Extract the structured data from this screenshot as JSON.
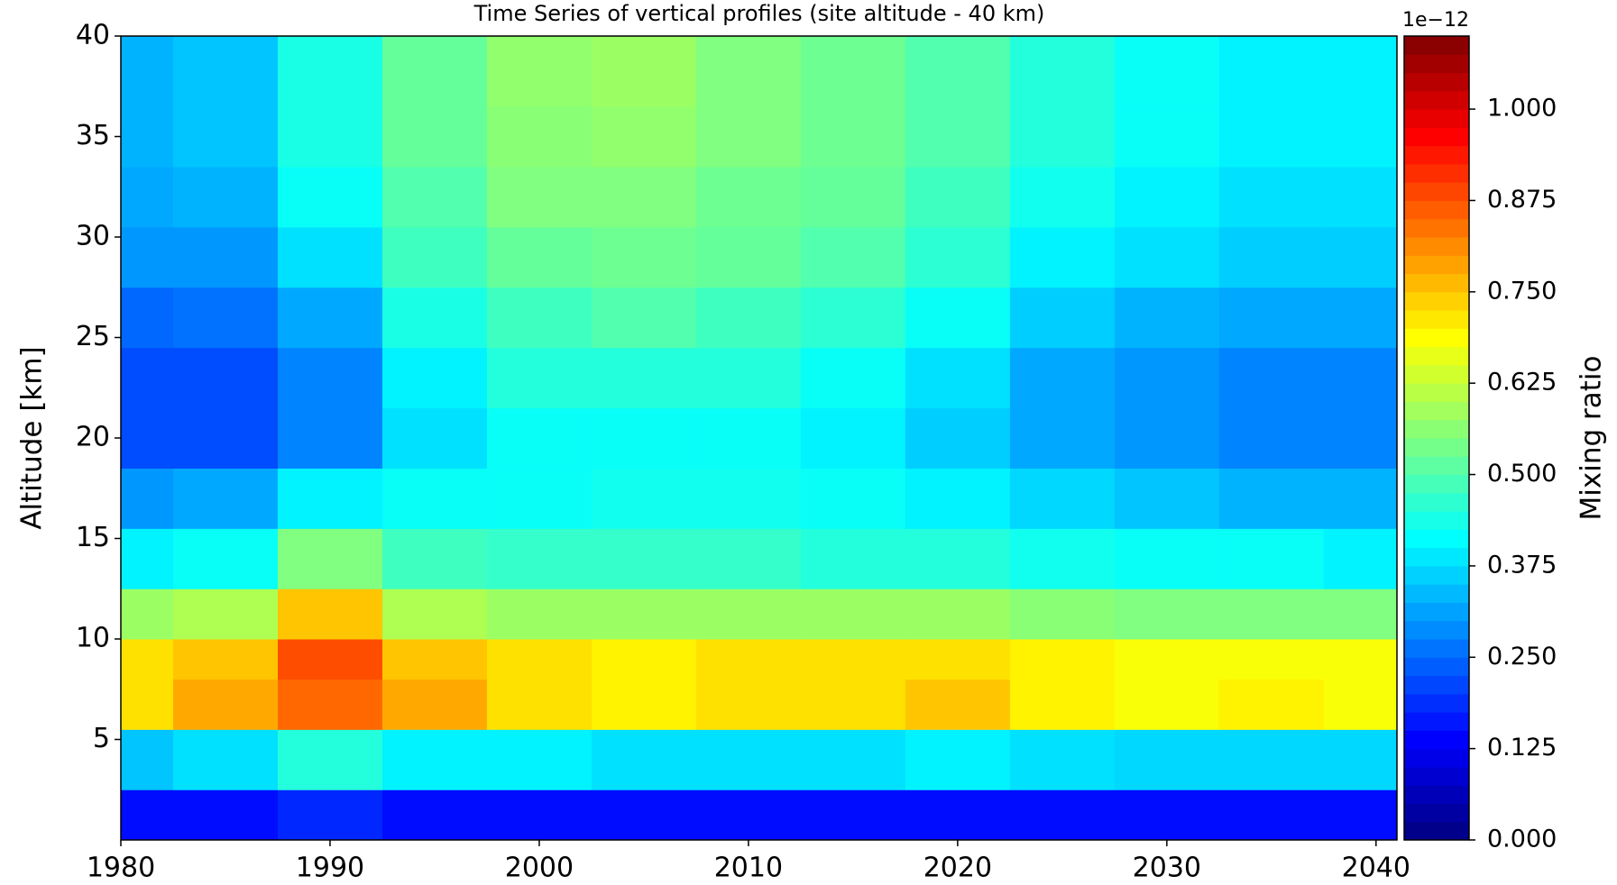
{
  "chart_data": {
    "type": "heatmap",
    "title": "Time Series of vertical profiles (site altitude - 40 km)",
    "y_label": "Altitude [km]",
    "colorbar_label": "Mixing ratio",
    "colorbar_offset": "1e−12",
    "colormap": "jet",
    "x": [
      1980,
      1985,
      1990,
      1995,
      2000,
      2005,
      2010,
      2015,
      2020,
      2025,
      2030,
      2035,
      2040
    ],
    "y": [
      1,
      4,
      7,
      9,
      11,
      14,
      17,
      20,
      23,
      26,
      29,
      32,
      35,
      38
    ],
    "z": [
      [
        0.15,
        0.15,
        0.18,
        0.15,
        0.15,
        0.15,
        0.15,
        0.15,
        0.15,
        0.15,
        0.15,
        0.15,
        0.15
      ],
      [
        0.35,
        0.38,
        0.45,
        0.4,
        0.4,
        0.38,
        0.38,
        0.38,
        0.4,
        0.38,
        0.37,
        0.37,
        0.37
      ],
      [
        0.72,
        0.78,
        0.85,
        0.78,
        0.72,
        0.7,
        0.72,
        0.72,
        0.75,
        0.7,
        0.68,
        0.7,
        0.68
      ],
      [
        0.72,
        0.75,
        0.88,
        0.75,
        0.72,
        0.7,
        0.72,
        0.72,
        0.72,
        0.7,
        0.68,
        0.68,
        0.68
      ],
      [
        0.58,
        0.6,
        0.75,
        0.6,
        0.58,
        0.58,
        0.58,
        0.58,
        0.58,
        0.56,
        0.55,
        0.55,
        0.55
      ],
      [
        0.4,
        0.42,
        0.55,
        0.48,
        0.47,
        0.47,
        0.47,
        0.45,
        0.45,
        0.43,
        0.42,
        0.42,
        0.4
      ],
      [
        0.3,
        0.32,
        0.4,
        0.42,
        0.42,
        0.43,
        0.43,
        0.42,
        0.4,
        0.37,
        0.35,
        0.33,
        0.33
      ],
      [
        0.22,
        0.22,
        0.28,
        0.38,
        0.42,
        0.42,
        0.42,
        0.4,
        0.36,
        0.32,
        0.3,
        0.28,
        0.28
      ],
      [
        0.22,
        0.22,
        0.28,
        0.4,
        0.45,
        0.45,
        0.45,
        0.42,
        0.38,
        0.32,
        0.3,
        0.28,
        0.28
      ],
      [
        0.25,
        0.26,
        0.32,
        0.44,
        0.48,
        0.5,
        0.48,
        0.46,
        0.42,
        0.36,
        0.33,
        0.32,
        0.32
      ],
      [
        0.3,
        0.3,
        0.38,
        0.48,
        0.52,
        0.53,
        0.52,
        0.5,
        0.46,
        0.4,
        0.38,
        0.36,
        0.36
      ],
      [
        0.32,
        0.33,
        0.42,
        0.5,
        0.55,
        0.55,
        0.53,
        0.52,
        0.48,
        0.43,
        0.4,
        0.38,
        0.38
      ],
      [
        0.33,
        0.35,
        0.44,
        0.52,
        0.56,
        0.57,
        0.55,
        0.53,
        0.5,
        0.45,
        0.42,
        0.4,
        0.4
      ],
      [
        0.33,
        0.35,
        0.44,
        0.52,
        0.57,
        0.58,
        0.55,
        0.53,
        0.5,
        0.45,
        0.42,
        0.4,
        0.4
      ]
    ],
    "xlim": [
      1980,
      2041
    ],
    "ylim": [
      0,
      40
    ],
    "xticks": [
      1980,
      1990,
      2000,
      2010,
      2020,
      2030,
      2040
    ],
    "yticks": [
      5,
      10,
      15,
      20,
      25,
      30,
      35,
      40
    ],
    "clim": [
      0,
      1.1
    ],
    "cticks": [
      {
        "value": 0,
        "label": "0.000"
      },
      {
        "value": 0.125,
        "label": "0.125"
      },
      {
        "value": 0.25,
        "label": "0.250"
      },
      {
        "value": 0.375,
        "label": "0.375"
      },
      {
        "value": 0.5,
        "label": "0.500"
      },
      {
        "value": 0.625,
        "label": "0.625"
      },
      {
        "value": 0.75,
        "label": "0.750"
      },
      {
        "value": 0.875,
        "label": "0.875"
      },
      {
        "value": 1.0,
        "label": "1.000"
      }
    ]
  }
}
